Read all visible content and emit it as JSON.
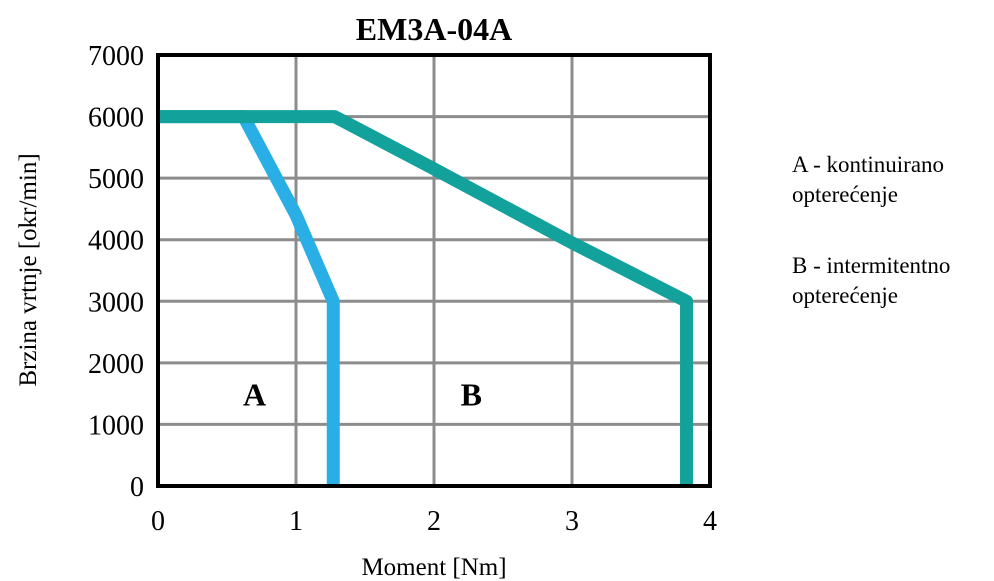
{
  "chart_data": {
    "type": "line",
    "title": "EM3A-04A",
    "xlabel": "Moment [Nm]",
    "ylabel": "Brzina vrtnje [okr/min]",
    "xlim": [
      0,
      4
    ],
    "ylim": [
      0,
      7000
    ],
    "x_ticks": [
      "0",
      "1",
      "2",
      "3",
      "4"
    ],
    "y_ticks": [
      "0",
      "1000",
      "2000",
      "3000",
      "4000",
      "5000",
      "6000",
      "7000"
    ],
    "grid": true,
    "series": [
      {
        "name": "A",
        "color": "#29aee6",
        "points": [
          [
            0,
            6000
          ],
          [
            0.62,
            6000
          ],
          [
            1.0,
            4400
          ],
          [
            1.27,
            3000
          ],
          [
            1.27,
            0
          ]
        ]
      },
      {
        "name": "B",
        "color": "#12a19b",
        "points": [
          [
            0,
            6000
          ],
          [
            1.28,
            6000
          ],
          [
            2.0,
            5150
          ],
          [
            3.0,
            3950
          ],
          [
            3.83,
            3000
          ],
          [
            3.83,
            0
          ]
        ]
      }
    ],
    "annotations": [
      {
        "text": "A",
        "x": 0.7,
        "y": 1500
      },
      {
        "text": "B",
        "x": 2.27,
        "y": 1500
      }
    ],
    "legend": {
      "placement": "right",
      "entries": [
        {
          "line1": "A - kontinuirano",
          "line2": "opterećenje"
        },
        {
          "line1": "B - intermitentno",
          "line2": "opterećenje"
        }
      ]
    }
  }
}
